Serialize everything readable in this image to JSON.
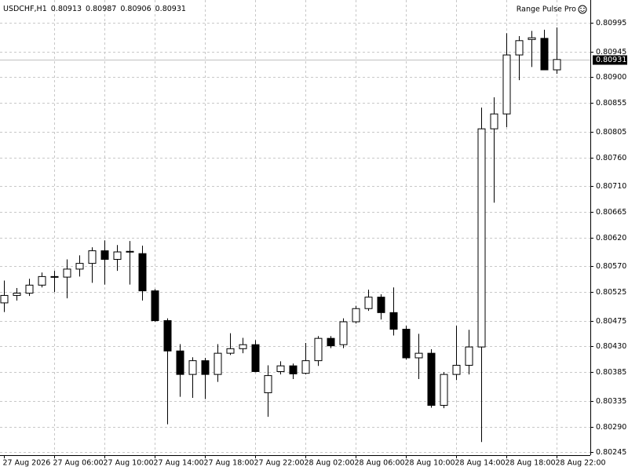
{
  "chart_data": {
    "type": "candlestick",
    "symbol": "USDCHF,H1",
    "indicator": "Range Pulse Pro",
    "categories": [
      "27 Aug 2026",
      null,
      null,
      null,
      "27 Aug 06:00",
      null,
      null,
      null,
      "27 Aug 10:00",
      null,
      null,
      null,
      "27 Aug 14:00",
      null,
      null,
      null,
      "27 Aug 18:00",
      null,
      null,
      null,
      "27 Aug 22:00",
      null,
      null,
      null,
      "28 Aug 02:00",
      null,
      null,
      null,
      "28 Aug 06:00",
      null,
      null,
      null,
      "28 Aug 10:00",
      null,
      null,
      null,
      "28 Aug 14:00",
      null,
      null,
      null,
      "28 Aug 18:00",
      null,
      null,
      null,
      "28 Aug 22:00"
    ],
    "open": [
      0.80506,
      0.80519,
      0.80523,
      0.80537,
      0.80552,
      0.80551,
      0.80565,
      0.80575,
      0.80597,
      0.80582,
      0.80596,
      0.80592,
      0.80527,
      0.80475,
      0.80422,
      0.80381,
      0.80405,
      0.80381,
      0.80418,
      0.80426,
      0.80433,
      0.80349,
      0.80386,
      0.80396,
      0.80383,
      0.80405,
      0.80444,
      0.80433,
      0.80473,
      0.80496,
      0.80516,
      0.80489,
      0.8046,
      0.8041,
      0.80418,
      0.80327,
      0.80381,
      0.80397,
      0.80429,
      0.8081,
      0.80836,
      0.80939,
      0.80966,
      0.80968,
      0.80913
    ],
    "high": [
      0.80545,
      0.80532,
      0.80548,
      0.80559,
      0.80562,
      0.80582,
      0.80589,
      0.80603,
      0.80615,
      0.80607,
      0.80614,
      0.80606,
      0.8053,
      0.80479,
      0.80434,
      0.80411,
      0.8041,
      0.80434,
      0.80453,
      0.80445,
      0.80441,
      0.80397,
      0.80404,
      0.804,
      0.80436,
      0.80448,
      0.80448,
      0.80479,
      0.80501,
      0.80529,
      0.80521,
      0.80533,
      0.80466,
      0.80452,
      0.80425,
      0.80385,
      0.80466,
      0.80459,
      0.80847,
      0.80865,
      0.80977,
      0.80972,
      0.80981,
      0.80983,
      0.80987
    ],
    "low": [
      0.8049,
      0.8051,
      0.80518,
      0.80533,
      0.80525,
      0.80514,
      0.80552,
      0.80541,
      0.80538,
      0.80562,
      0.80538,
      0.8051,
      0.80473,
      0.80294,
      0.80342,
      0.8034,
      0.80338,
      0.80368,
      0.80415,
      0.80418,
      0.80385,
      0.80307,
      0.80381,
      0.80373,
      0.80381,
      0.80396,
      0.80427,
      0.80427,
      0.8047,
      0.80492,
      0.80477,
      0.80449,
      0.80407,
      0.80373,
      0.80323,
      0.80322,
      0.80371,
      0.80381,
      0.80263,
      0.80681,
      0.80813,
      0.80895,
      0.80918,
      0.80913,
      0.80906
    ],
    "close": [
      0.80519,
      0.80523,
      0.80537,
      0.80552,
      0.80551,
      0.80565,
      0.80575,
      0.80597,
      0.80582,
      0.80595,
      0.80595,
      0.80527,
      0.80475,
      0.80422,
      0.80381,
      0.80405,
      0.80381,
      0.80418,
      0.80426,
      0.80433,
      0.80386,
      0.80379,
      0.80396,
      0.80382,
      0.80405,
      0.80444,
      0.80431,
      0.80473,
      0.80496,
      0.80516,
      0.80489,
      0.8046,
      0.8041,
      0.80418,
      0.80327,
      0.80381,
      0.80397,
      0.80429,
      0.8081,
      0.80836,
      0.80939,
      0.80964,
      0.80969,
      0.80913,
      0.80931
    ],
    "bull_color": "#ffffff",
    "bear_color": "#000000",
    "ylim": [
      0.8024,
      0.81035
    ],
    "yticks": [
      {
        "value": 0.80995,
        "label": "0.80995"
      },
      {
        "value": 0.80945,
        "label": "0.80945"
      },
      {
        "value": 0.809,
        "label": "0.80900"
      },
      {
        "value": 0.80855,
        "label": "0.80855"
      },
      {
        "value": 0.80805,
        "label": "0.80805"
      },
      {
        "value": 0.8076,
        "label": "0.80760"
      },
      {
        "value": 0.8071,
        "label": "0.80710"
      },
      {
        "value": 0.80665,
        "label": "0.80665"
      },
      {
        "value": 0.8062,
        "label": "0.80620"
      },
      {
        "value": 0.8057,
        "label": "0.80570"
      },
      {
        "value": 0.80525,
        "label": "0.80525"
      },
      {
        "value": 0.80475,
        "label": "0.80475"
      },
      {
        "value": 0.8043,
        "label": "0.80430"
      },
      {
        "value": 0.80385,
        "label": "0.80385"
      },
      {
        "value": 0.80335,
        "label": "0.80335"
      },
      {
        "value": 0.8029,
        "label": "0.80290"
      },
      {
        "value": 0.80245,
        "label": "0.80245"
      }
    ],
    "grid": true
  }
}
